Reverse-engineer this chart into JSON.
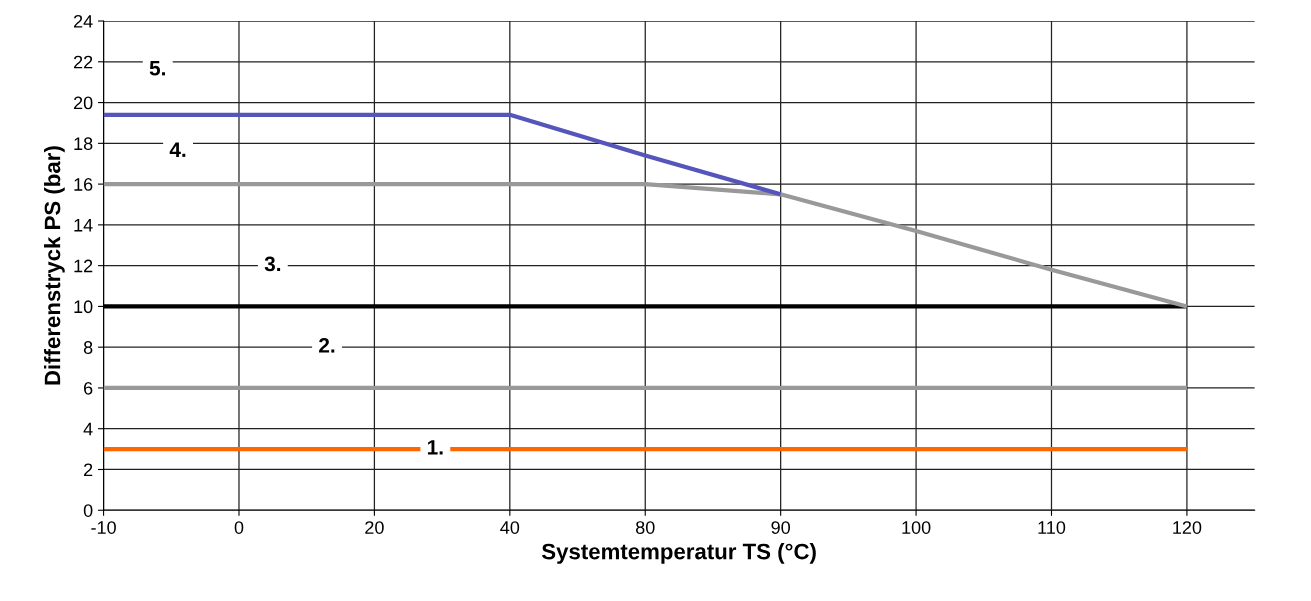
{
  "chart_data": {
    "type": "line",
    "xlabel": "Systemtemperatur TS (°C)",
    "ylabel": "Differenstryck PS (bar)",
    "categories": [
      "-10",
      "0",
      "20",
      "40",
      "80",
      "90",
      "100",
      "110",
      "120"
    ],
    "series": [
      {
        "color": "#ff6600",
        "values": [
          3,
          3,
          3,
          3,
          3,
          3,
          3,
          3,
          3
        ]
      },
      {
        "color": "#999999",
        "values": [
          6,
          6,
          6,
          6,
          6,
          6,
          6,
          6,
          6
        ]
      },
      {
        "color": "#000000",
        "values": [
          10,
          10,
          10,
          10,
          10,
          10,
          10,
          10,
          10
        ]
      },
      {
        "color": "#999999",
        "values": [
          16,
          16,
          16,
          16,
          16,
          15.5,
          13.7,
          11.8,
          10
        ]
      },
      {
        "color": "#5555bb",
        "values": [
          19.4,
          19.4,
          19.4,
          19.4,
          17.4,
          15.5,
          null,
          null,
          null
        ]
      }
    ],
    "annotations": [
      {
        "text": "1.",
        "y": 3
      },
      {
        "text": "2.",
        "y": 8
      },
      {
        "text": "3.",
        "y": 12
      },
      {
        "text": "4.",
        "y": 17.6
      },
      {
        "text": "5.",
        "y": 21.6
      }
    ],
    "ylim": [
      0,
      24
    ],
    "yticks": [
      0,
      2,
      4,
      6,
      8,
      10,
      12,
      14,
      16,
      18,
      20,
      22,
      24
    ],
    "grid": true,
    "marker": "none",
    "line_style": "solid"
  }
}
